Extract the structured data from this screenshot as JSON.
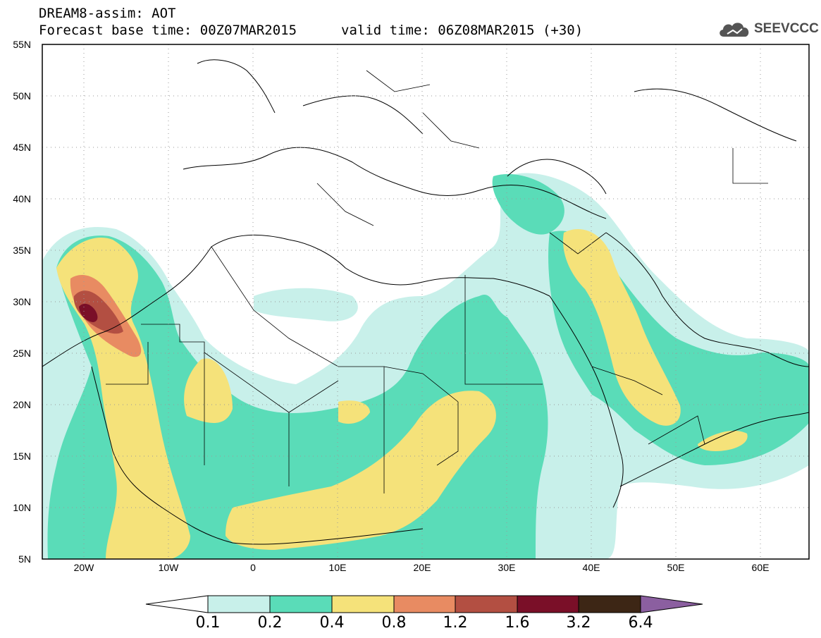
{
  "header": {
    "model_title": "DREAM8-assim: AOT",
    "base_time": "Forecast base time: 00Z07MAR2015",
    "valid_time": "valid time: 06Z08MAR2015 (+30)"
  },
  "logo": {
    "text": "SEEVCCC",
    "icon": "cloud-icon"
  },
  "map": {
    "region": "North Africa, Europe and Middle East",
    "lat_labels": [
      "55N",
      "50N",
      "45N",
      "40N",
      "35N",
      "30N",
      "25N",
      "20N",
      "15N",
      "10N",
      "5N"
    ],
    "lon_labels": [
      "20W",
      "10W",
      "0",
      "10E",
      "20E",
      "30E",
      "40E",
      "50E",
      "60E"
    ],
    "grid": "dotted"
  },
  "colorbar": {
    "labels": [
      "0.1",
      "0.2",
      "0.4",
      "0.8",
      "1.2",
      "1.6",
      "3.2",
      "6.4"
    ],
    "colors": [
      "#ffffff",
      "#c8f0ea",
      "#5adcb8",
      "#f5e27a",
      "#e88b62",
      "#b34f42",
      "#7a0f28",
      "#3d2615",
      "#8b5fa0"
    ]
  }
}
